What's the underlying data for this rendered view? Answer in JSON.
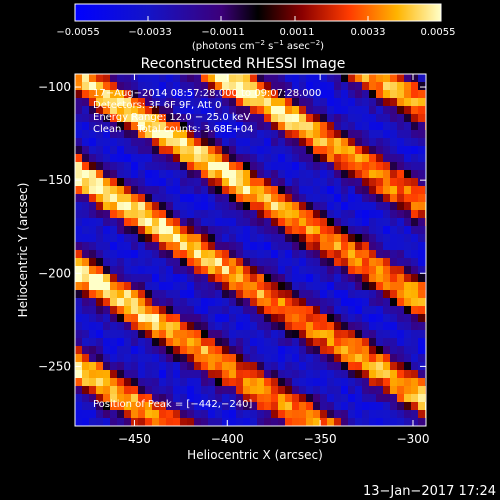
{
  "chart_data": {
    "type": "heatmap",
    "title": "Reconstructed RHESSI Image",
    "xlabel": "Heliocentric X (arcsec)",
    "ylabel": "Heliocentric Y (arcsec)",
    "xlim": [
      -482,
      -293
    ],
    "ylim": [
      -282,
      -93
    ],
    "xticks": [
      -450,
      -400,
      -350,
      -300
    ],
    "yticks": [
      -100,
      -150,
      -200,
      -250
    ],
    "xtick_labels": [
      "−450",
      "−400",
      "−350",
      "−300"
    ],
    "ytick_labels": [
      "−100",
      "−150",
      "−200",
      "−250"
    ],
    "colorbar": {
      "range": [
        -0.0055,
        0.0055
      ],
      "tick_labels": [
        "−0.0055",
        "−0.0033",
        "−0.0011",
        "0.0011",
        "0.0033",
        "0.0055"
      ],
      "unit_main": "(photons cm",
      "unit_sup1": "−2",
      "unit_mid": " s",
      "unit_sup2": "−1",
      "unit_end": " asec",
      "unit_sup3": "−2",
      "unit_close": ")"
    },
    "annotations": [
      "17−Aug−2014 08:57:28.000 to 09:07:28.000",
      "Detectors: 3F 6F 9F, Att 0",
      "Energy Range: 12.0 − 25.0 keV",
      "Clean     Total counts: 3.68E+04"
    ],
    "peak": "Position of Peak = [−442,−240]",
    "grid": false
  },
  "footer": {
    "timestamp": "13−Jan−2017 17:24"
  }
}
